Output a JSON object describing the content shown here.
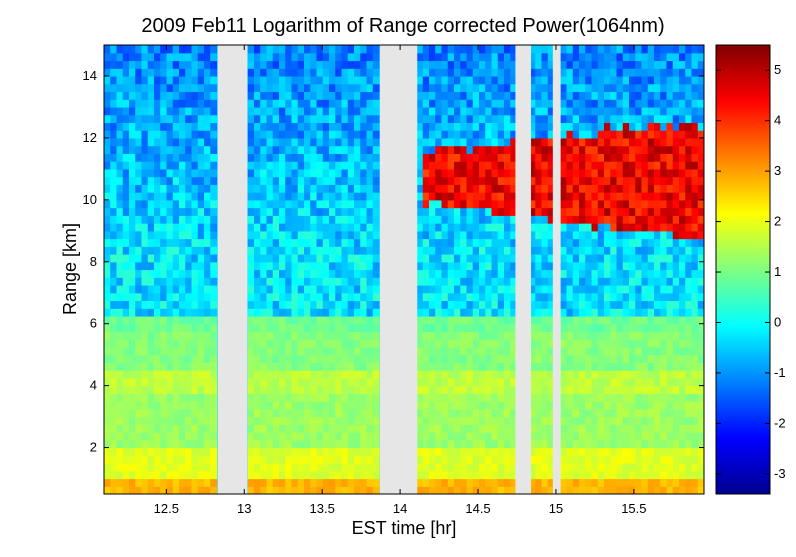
{
  "chart_data": {
    "type": "heatmap",
    "title": "2009 Feb11  Logarithm of Range corrected Power(1064nm)",
    "xlabel": "EST time [hr]",
    "ylabel": "Range [km]",
    "xlim": [
      12.1,
      15.95
    ],
    "ylim": [
      0.5,
      15.0
    ],
    "x_ticks": [
      12.5,
      13,
      13.5,
      14,
      14.5,
      15,
      15.5
    ],
    "x_tick_labels": [
      "12.5",
      "13",
      "13.5",
      "14",
      "14.5",
      "15",
      "15.5"
    ],
    "y_ticks": [
      2,
      4,
      6,
      8,
      10,
      12,
      14
    ],
    "y_tick_labels": [
      "2",
      "4",
      "6",
      "8",
      "10",
      "12",
      "14"
    ],
    "colorbar": {
      "range": [
        -3.4,
        5.5
      ],
      "ticks": [
        -3,
        -2,
        -1,
        0,
        1,
        2,
        3,
        4,
        5
      ],
      "tick_labels": [
        "-3",
        "-2",
        "-1",
        "0",
        "1",
        "2",
        "3",
        "4",
        "5"
      ],
      "colors": [
        "#00008f",
        "#0000ff",
        "#0080ff",
        "#00ffff",
        "#80ff80",
        "#ffff00",
        "#ff8000",
        "#ff0000",
        "#800000"
      ]
    },
    "data_gaps_hr": [
      [
        12.83,
        13.02
      ],
      [
        13.87,
        14.11
      ],
      [
        14.74,
        14.84
      ],
      [
        14.98,
        15.03
      ]
    ],
    "cloud_layer": {
      "t_start": 14.11,
      "t_end": 15.95,
      "base_km_start": 9.8,
      "base_km_end": 8.5,
      "top_km_start": 11.5,
      "top_km_end": 12.4,
      "value": 4.5
    },
    "layers": [
      {
        "name": "surface-layer",
        "z_bottom_km": 0.5,
        "z_top_km": 1.0,
        "value": 2.8
      },
      {
        "name": "boundary-layer",
        "z_bottom_km": 1.0,
        "z_top_km": 2.0,
        "value": 1.9
      },
      {
        "name": "aerosol-band-4km",
        "z_bottom_km": 3.6,
        "z_top_km": 4.3,
        "value": 1.6
      },
      {
        "name": "aerosol-band-6km",
        "z_bottom_km": 5.6,
        "z_top_km": 6.1,
        "value": 0.9
      },
      {
        "name": "free-troposphere",
        "z_bottom_km": 6.1,
        "z_top_km": 15.0,
        "value": -0.3
      }
    ],
    "gap_color": "#e6e6e6"
  }
}
